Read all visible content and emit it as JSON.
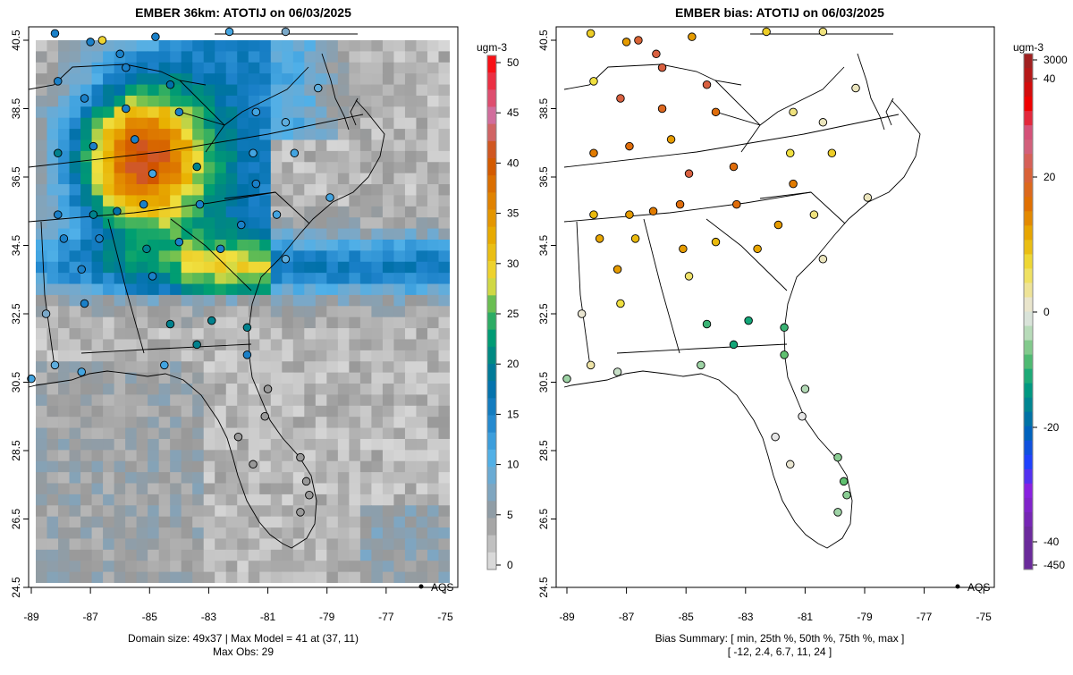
{
  "chart_data": [
    {
      "type": "heatmap",
      "title": "EMBER 36km: ATOTIJ on 06/03/2025",
      "units": "ugm-3",
      "xlim": [
        -89,
        -75
      ],
      "ylim": [
        24.5,
        40.5
      ],
      "xticks": [
        "-89",
        "-87",
        "-85",
        "-83",
        "-81",
        "-79",
        "-77",
        "-75"
      ],
      "yticks": [
        "40.5",
        "38.5",
        "36.5",
        "34.5",
        "32.5",
        "30.5",
        "28.5",
        "26.5",
        "24.5"
      ],
      "colorbar_ticks": [
        "50",
        "45",
        "40",
        "35",
        "30",
        "25",
        "20",
        "15",
        "10",
        "5",
        "0"
      ],
      "colorbar_range": [
        0,
        50
      ],
      "color_stops": [
        [
          0,
          "#e6e6e6"
        ],
        [
          5,
          "#999999"
        ],
        [
          8,
          "#7aa8c8"
        ],
        [
          11,
          "#50b0e8"
        ],
        [
          15,
          "#1a80c8"
        ],
        [
          18,
          "#0070a8"
        ],
        [
          21,
          "#008a80"
        ],
        [
          23,
          "#00a070"
        ],
        [
          26,
          "#70c050"
        ],
        [
          28,
          "#f0e040"
        ],
        [
          32,
          "#e8b000"
        ],
        [
          36,
          "#e08000"
        ],
        [
          40,
          "#d05000"
        ],
        [
          44,
          "#d070a0"
        ],
        [
          50,
          "#ff0000"
        ]
      ],
      "legend": "AQS",
      "footer_line1": "Domain size: 49x37 | Max Model = 41 at (37, 11)",
      "footer_line2": "Max Obs: 29",
      "domain_cols": 37,
      "domain_rows": 49,
      "max_model": 41
    },
    {
      "type": "scatter",
      "title": "EMBER bias: ATOTIJ on 06/03/2025",
      "units": "ugm-3",
      "xlim": [
        -89,
        -75
      ],
      "ylim": [
        24.5,
        40.5
      ],
      "xticks": [
        "-89",
        "-87",
        "-85",
        "-83",
        "-81",
        "-79",
        "-77",
        "-75"
      ],
      "yticks": [
        "40.5",
        "38.5",
        "36.5",
        "34.5",
        "32.5",
        "30.5",
        "28.5",
        "26.5",
        "24.5"
      ],
      "colorbar_ticks": [
        "3000",
        "40",
        "20",
        "0",
        "-20",
        "-40",
        "-450"
      ],
      "color_stops": [
        [
          -40,
          "#6a2a9a"
        ],
        [
          -32,
          "#8a20e0"
        ],
        [
          -27,
          "#2040ff"
        ],
        [
          -22,
          "#0060c0"
        ],
        [
          -18,
          "#007a9a"
        ],
        [
          -13,
          "#00a07a"
        ],
        [
          -8,
          "#60c070"
        ],
        [
          -3,
          "#c8e0c8"
        ],
        [
          0,
          "#e6e6e6"
        ],
        [
          3,
          "#eee4a8"
        ],
        [
          8,
          "#f0e040"
        ],
        [
          13,
          "#e8b000"
        ],
        [
          19,
          "#e07000"
        ],
        [
          25,
          "#d86040"
        ],
        [
          31,
          "#d06090"
        ],
        [
          37,
          "#f00000"
        ],
        [
          44,
          "#a02020"
        ]
      ],
      "legend": "AQS",
      "footer_line1": "Bias Summary: [ min, 25th %, 50th %, 75th %, max ]",
      "footer_line2": "[ -12,  2.4,  6.7,  11,  24 ]"
    }
  ],
  "stations_columns": [
    "lon",
    "lat",
    "obs",
    "bias"
  ],
  "stations": [
    [
      -88.2,
      40.7,
      15,
      10
    ],
    [
      -87.0,
      40.45,
      15,
      15
    ],
    [
      -86.0,
      40.1,
      15,
      25
    ],
    [
      -84.8,
      40.6,
      15,
      15
    ],
    [
      -82.3,
      40.75,
      12,
      10
    ],
    [
      -80.4,
      40.75,
      8,
      5
    ],
    [
      -79.3,
      39.1,
      10,
      2
    ],
    [
      -88.1,
      39.3,
      15,
      8
    ],
    [
      -87.2,
      38.8,
      15,
      25
    ],
    [
      -85.8,
      38.5,
      15,
      22
    ],
    [
      -84.3,
      39.2,
      18,
      25
    ],
    [
      -84.0,
      38.4,
      15,
      20
    ],
    [
      -81.4,
      38.4,
      12,
      5
    ],
    [
      -80.4,
      38.1,
      10,
      2
    ],
    [
      -88.1,
      37.2,
      20,
      18
    ],
    [
      -86.9,
      37.4,
      15,
      20
    ],
    [
      -85.5,
      37.6,
      15,
      15
    ],
    [
      -84.9,
      36.6,
      12,
      25
    ],
    [
      -83.4,
      36.8,
      20,
      20
    ],
    [
      -81.5,
      37.2,
      12,
      8
    ],
    [
      -80.1,
      37.2,
      12,
      10
    ],
    [
      -81.4,
      36.3,
      15,
      18
    ],
    [
      -78.9,
      35.9,
      12,
      2
    ],
    [
      -88.1,
      35.4,
      15,
      12
    ],
    [
      -86.9,
      35.4,
      20,
      15
    ],
    [
      -86.1,
      35.5,
      18,
      18
    ],
    [
      -83.3,
      35.7,
      15,
      20
    ],
    [
      -81.9,
      35.1,
      15,
      15
    ],
    [
      -80.7,
      35.4,
      12,
      5
    ],
    [
      -87.9,
      34.7,
      15,
      14
    ],
    [
      -86.7,
      34.7,
      15,
      12
    ],
    [
      -85.1,
      34.4,
      20,
      15
    ],
    [
      -84.0,
      34.6,
      15,
      12
    ],
    [
      -82.6,
      34.4,
      15,
      14
    ],
    [
      -80.4,
      34.1,
      10,
      2
    ],
    [
      -87.3,
      33.8,
      15,
      15
    ],
    [
      -84.9,
      33.6,
      15,
      6
    ],
    [
      -87.2,
      32.8,
      15,
      8
    ],
    [
      -88.5,
      32.5,
      8,
      1
    ],
    [
      -84.3,
      32.2,
      20,
      -10
    ],
    [
      -82.9,
      32.3,
      20,
      -12
    ],
    [
      -81.7,
      32.1,
      20,
      -10
    ],
    [
      -83.4,
      31.6,
      20,
      -12
    ],
    [
      -81.7,
      31.3,
      15,
      -8
    ],
    [
      -88.2,
      31.0,
      10,
      3
    ],
    [
      -87.3,
      30.8,
      12,
      -3
    ],
    [
      -84.5,
      31.0,
      12,
      -5
    ],
    [
      -89.0,
      30.6,
      12,
      -5
    ],
    [
      -81.0,
      30.3,
      5,
      -4
    ],
    [
      -81.1,
      29.5,
      5,
      0
    ],
    [
      -82.0,
      28.9,
      5,
      0
    ],
    [
      -79.9,
      28.3,
      5,
      -6
    ],
    [
      -81.5,
      28.1,
      5,
      1
    ],
    [
      -79.7,
      27.6,
      5,
      -8
    ],
    [
      -79.6,
      27.2,
      5,
      -6
    ],
    [
      -79.9,
      26.7,
      5,
      -5
    ],
    [
      -85.2,
      35.7,
      15,
      20
    ],
    [
      -85.8,
      39.7,
      15,
      25
    ],
    [
      -86.6,
      40.5,
      29,
      24
    ]
  ]
}
